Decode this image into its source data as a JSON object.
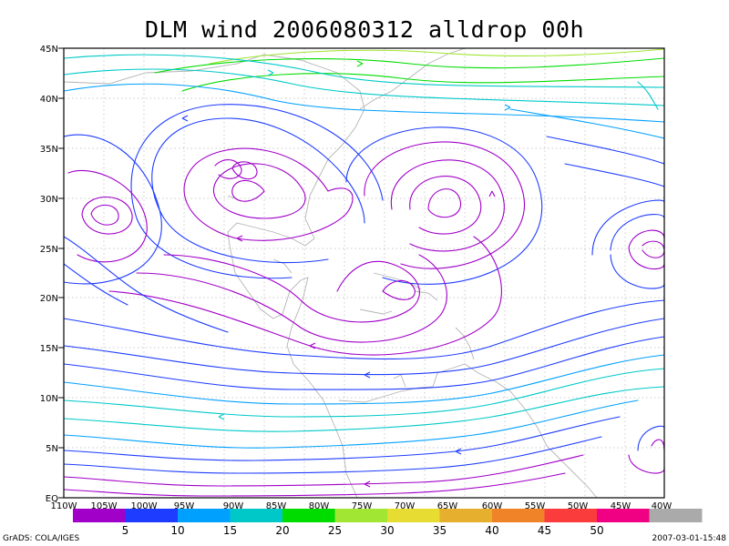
{
  "title": "DLM wind 2006080312 alldrop 00h",
  "footer": {
    "credit": "GrADS: COLA/IGES",
    "timestamp": "2007-03-01-15:48"
  },
  "axes": {
    "lat_labels": [
      "45N",
      "40N",
      "35N",
      "30N",
      "25N",
      "20N",
      "15N",
      "10N",
      "5N",
      "EQ"
    ],
    "lon_labels": [
      "110W",
      "105W",
      "100W",
      "95W",
      "90W",
      "85W",
      "80W",
      "75W",
      "70W",
      "65W",
      "60W",
      "55W",
      "50W",
      "45W",
      "40W"
    ]
  },
  "colorbar": {
    "colors": [
      "#a000c8",
      "#1e3cff",
      "#00a0ff",
      "#00c8c8",
      "#00dc00",
      "#a0e632",
      "#e6dc32",
      "#e6af2d",
      "#f08228",
      "#fa3c3c",
      "#f00082",
      "#aaaaaa"
    ],
    "labels": [
      "5",
      "10",
      "15",
      "20",
      "25",
      "30",
      "35",
      "40",
      "45",
      "50"
    ]
  },
  "legend_colors": {
    "calm": "#a000c8",
    "light": "#1e3cff",
    "moderate": "#00a0ff",
    "fresh": "#00c8c8",
    "strong": "#00dc00",
    "jet": "#a0e632"
  }
}
